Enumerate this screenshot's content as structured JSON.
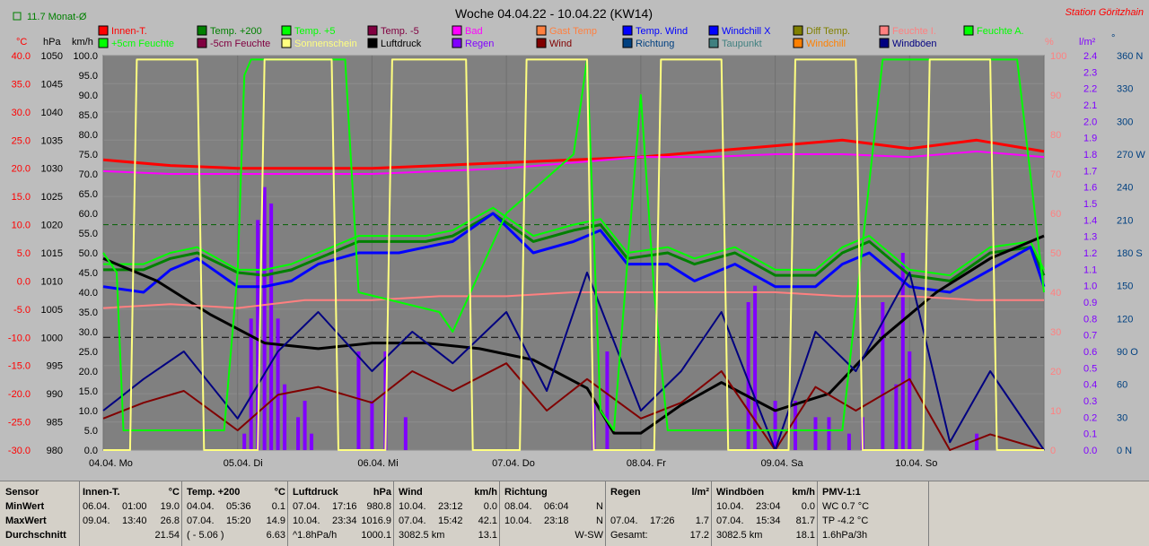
{
  "header": {
    "title": "Woche 04.04.22 - 10.04.22 (KW14)",
    "station": "Station Göritzhain",
    "month_avg": "11.7 Monat-Ø"
  },
  "axes_units": {
    "celsius": "°C",
    "hpa": "hPa",
    "kmh": "km/h",
    "percent": "%",
    "rain": "l/m²",
    "dir": "°"
  },
  "axes": {
    "celsius": [
      "40.0",
      "35.0",
      "30.0",
      "25.0",
      "20.0",
      "15.0",
      "10.0",
      "5.0",
      "0.0",
      "-5.0",
      "-10.0",
      "-15.0",
      "-20.0",
      "-25.0",
      "-30.0"
    ],
    "hpa": [
      "1050",
      "1045",
      "1040",
      "1035",
      "1030",
      "1025",
      "1020",
      "1015",
      "1010",
      "1005",
      "1000",
      "995",
      "990",
      "985",
      "980"
    ],
    "kmh": [
      "100.0",
      "95.0",
      "90.0",
      "85.0",
      "80.0",
      "75.0",
      "70.0",
      "65.0",
      "60.0",
      "55.0",
      "50.0",
      "45.0",
      "40.0",
      "35.0",
      "30.0",
      "25.0",
      "20.0",
      "15.0",
      "10.0",
      "5.0",
      "0.0"
    ],
    "percent": [
      "100",
      "90",
      "80",
      "70",
      "60",
      "50",
      "40",
      "30",
      "20",
      "10",
      "0"
    ],
    "rain": [
      "2.4",
      "2.3",
      "2.2",
      "2.1",
      "2.0",
      "1.9",
      "1.8",
      "1.7",
      "1.6",
      "1.5",
      "1.4",
      "1.3",
      "1.2",
      "1.1",
      "1.0",
      "0.9",
      "0.8",
      "0.7",
      "0.6",
      "0.5",
      "0.4",
      "0.3",
      "0.2",
      "0.1",
      "0.0"
    ],
    "dir": [
      "360 N",
      "330",
      "300",
      "270 W",
      "240",
      "210",
      "180 S",
      "150",
      "120",
      "90 O",
      "60",
      "30",
      "0 N"
    ],
    "days": [
      "04.04. Mo",
      "05.04. Di",
      "06.04. Mi",
      "07.04. Do",
      "08.04. Fr",
      "09.04. Sa",
      "10.04. So"
    ]
  },
  "legend": [
    {
      "label": "Innen-T.",
      "color": "#ff0000"
    },
    {
      "label": "Temp. +200",
      "color": "#008000"
    },
    {
      "label": "Temp. +5",
      "color": "#00ff00"
    },
    {
      "label": "Temp. -5",
      "color": "#800040"
    },
    {
      "label": "Bad",
      "color": "#ff00ff"
    },
    {
      "label": "Gast Temp",
      "color": "#ff8040"
    },
    {
      "label": "Temp. Wind",
      "color": "#0000ff"
    },
    {
      "label": "Windchill X",
      "color": "#0000ff"
    },
    {
      "label": "Diff Temp.",
      "color": "#808000"
    },
    {
      "label": "Feuchte I.",
      "color": "#ff8080"
    },
    {
      "label": "Feuchte A.",
      "color": "#00ff00"
    },
    {
      "label": "+5cm Feuchte",
      "color": "#00ff00"
    },
    {
      "label": "-5cm Feuchte",
      "color": "#800040"
    },
    {
      "label": "Sonnenschein",
      "color": "#ffff80"
    },
    {
      "label": "Luftdruck",
      "color": "#000000"
    },
    {
      "label": "Regen",
      "color": "#8000ff"
    },
    {
      "label": "Wind",
      "color": "#800000"
    },
    {
      "label": "Richtung",
      "color": "#004080"
    },
    {
      "label": "Taupunkt",
      "color": "#408080"
    },
    {
      "label": "Windchill",
      "color": "#ff8000"
    },
    {
      "label": "Windböen",
      "color": "#000080"
    }
  ],
  "chart_data": {
    "type": "line",
    "title": "Woche 04.04.22 - 10.04.22 (KW14)",
    "x_unit": "day of week (0=04.04 00:00 .. 7=11.04 00:00)",
    "series": [
      {
        "name": "Innen-T.",
        "axis": "celsius",
        "color": "#ff0000",
        "width": 3,
        "x": [
          0,
          0.5,
          1,
          1.5,
          2,
          2.5,
          3,
          3.5,
          4,
          4.5,
          5,
          5.5,
          6,
          6.5,
          7
        ],
        "y": [
          21.5,
          20.5,
          20.0,
          20.0,
          20.0,
          20.5,
          21.0,
          21.5,
          22.0,
          23.0,
          24.0,
          25.0,
          23.5,
          25.0,
          23.0
        ]
      },
      {
        "name": "Temp. +5",
        "axis": "celsius",
        "color": "#00ff00",
        "width": 2,
        "x": [
          0,
          0.3,
          0.5,
          0.7,
          1,
          1.2,
          1.4,
          1.6,
          1.9,
          2.2,
          2.4,
          2.6,
          2.9,
          3.2,
          3.5,
          3.7,
          3.9,
          4.2,
          4.4,
          4.7,
          5.0,
          5.3,
          5.5,
          5.7,
          6.0,
          6.3,
          6.6,
          6.9,
          7
        ],
        "y": [
          3,
          3,
          5,
          6,
          2,
          2,
          3,
          5,
          8,
          8,
          8,
          9,
          13,
          8,
          10,
          11,
          5,
          6,
          4,
          6,
          2,
          2,
          6,
          8,
          2,
          1,
          6,
          7,
          2
        ]
      },
      {
        "name": "Temp. +200",
        "axis": "celsius",
        "color": "#008000",
        "width": 3,
        "x": [
          0,
          0.3,
          0.5,
          0.7,
          1,
          1.2,
          1.4,
          1.6,
          1.9,
          2.2,
          2.4,
          2.6,
          2.9,
          3.2,
          3.5,
          3.7,
          3.9,
          4.2,
          4.4,
          4.7,
          5.0,
          5.3,
          5.5,
          5.7,
          6.0,
          6.3,
          6.6,
          6.9,
          7
        ],
        "y": [
          2,
          2,
          4,
          5,
          1.5,
          1,
          2,
          4,
          7,
          7,
          7,
          8,
          12,
          7,
          9,
          10,
          4,
          5,
          3,
          5,
          1,
          1,
          5,
          7,
          1,
          0,
          5,
          6,
          1
        ]
      },
      {
        "name": "Temp. Wind",
        "axis": "celsius",
        "color": "#0000ff",
        "width": 3,
        "x": [
          0,
          0.3,
          0.5,
          0.7,
          1,
          1.2,
          1.4,
          1.6,
          1.9,
          2.2,
          2.4,
          2.6,
          2.9,
          3.2,
          3.5,
          3.7,
          3.9,
          4.2,
          4.4,
          4.7,
          5.0,
          5.3,
          5.5,
          5.7,
          6.0,
          6.3,
          6.6,
          6.9,
          7
        ],
        "y": [
          -1,
          -2,
          2,
          4,
          -1,
          -1,
          0,
          3,
          5,
          5,
          6,
          7,
          12,
          5,
          7,
          9,
          3,
          3,
          0,
          3,
          -1,
          -1,
          3,
          5,
          -1,
          -2,
          2,
          6,
          -1
        ]
      },
      {
        "name": "Luftdruck",
        "axis": "hpa",
        "color": "#000000",
        "width": 3,
        "x": [
          0,
          0.4,
          0.8,
          1.2,
          1.6,
          2.0,
          2.4,
          2.8,
          3.2,
          3.6,
          3.8,
          4.0,
          4.3,
          4.6,
          5.0,
          5.4,
          5.8,
          6.2,
          6.6,
          7
        ],
        "y": [
          1014,
          1010,
          1004,
          999,
          998,
          999,
          999,
          998,
          996,
          991,
          983,
          983,
          988,
          992,
          987,
          990,
          1000,
          1008,
          1014,
          1018
        ]
      },
      {
        "name": "Feuchte I.",
        "axis": "percent",
        "color": "#ff8080",
        "width": 2,
        "x": [
          0,
          0.5,
          1,
          1.5,
          2,
          2.5,
          3,
          3.5,
          4,
          4.5,
          5,
          5.5,
          6,
          6.5,
          7
        ],
        "y": [
          36,
          37,
          36,
          38,
          38,
          39,
          39,
          40,
          40,
          40,
          40,
          39,
          39,
          38,
          38
        ]
      },
      {
        "name": "Bad",
        "axis": "celsius",
        "color": "#ff00ff",
        "width": 2,
        "x": [
          0,
          0.5,
          1,
          1.5,
          2,
          2.5,
          3,
          3.5,
          4,
          4.5,
          5,
          5.5,
          6,
          6.5,
          7
        ],
        "y": [
          19.5,
          19,
          19,
          19,
          19,
          19.5,
          20,
          21,
          22,
          22,
          22.5,
          22.5,
          22,
          23,
          22
        ]
      },
      {
        "name": "Wind",
        "axis": "kmh",
        "color": "#800000",
        "width": 2,
        "x": [
          0,
          0.3,
          0.6,
          1,
          1.3,
          1.6,
          2,
          2.3,
          2.6,
          3,
          3.3,
          3.6,
          4,
          4.3,
          4.6,
          5,
          5.3,
          5.6,
          6,
          6.3,
          6.6,
          7
        ],
        "y": [
          8,
          12,
          15,
          5,
          14,
          16,
          12,
          20,
          15,
          22,
          10,
          18,
          8,
          12,
          20,
          0,
          16,
          10,
          18,
          0,
          4,
          0
        ]
      },
      {
        "name": "Windböen",
        "axis": "kmh",
        "color": "#000080",
        "width": 2,
        "x": [
          0,
          0.3,
          0.6,
          1,
          1.3,
          1.6,
          2,
          2.3,
          2.6,
          3,
          3.3,
          3.6,
          4,
          4.3,
          4.6,
          5,
          5.3,
          5.6,
          6,
          6.3,
          6.6,
          7
        ],
        "y": [
          10,
          18,
          25,
          8,
          25,
          35,
          20,
          30,
          22,
          35,
          15,
          45,
          10,
          20,
          35,
          0,
          30,
          20,
          45,
          2,
          20,
          0
        ]
      },
      {
        "name": "Feuchte A.",
        "axis": "percent",
        "color": "#00ff00",
        "width": 2,
        "x": [
          0,
          0.1,
          0.15,
          0.3,
          0.8,
          0.9,
          1.0,
          1.05,
          1.1,
          1.7,
          1.8,
          1.9,
          2.5,
          2.6,
          3.0,
          3.5,
          3.6,
          3.7,
          3.8,
          4.0,
          4.1,
          4.2,
          4.5,
          5.0,
          5.5,
          5.8,
          6.0,
          6.5,
          6.8,
          7
        ],
        "y": [
          50,
          45,
          5,
          5,
          5,
          5,
          45,
          95,
          99,
          99,
          99,
          40,
          35,
          30,
          60,
          75,
          99,
          10,
          5,
          90,
          40,
          5,
          5,
          5,
          5,
          99,
          99,
          99,
          99,
          40
        ]
      },
      {
        "name": "Sonnenschein",
        "axis": "percent",
        "color": "#ffff80",
        "width": 2,
        "x": [
          0,
          0.2,
          0.25,
          0.7,
          0.75,
          1.15,
          1.2,
          1.7,
          1.75,
          2.1,
          2.15,
          2.7,
          2.75,
          3.1,
          3.15,
          3.6,
          3.65,
          4.1,
          4.15,
          4.6,
          4.65,
          5.1,
          5.15,
          5.6,
          5.65,
          6.1,
          6.15,
          6.6,
          6.65,
          7
        ],
        "y": [
          0,
          0,
          99,
          99,
          0,
          0,
          99,
          99,
          0,
          0,
          99,
          99,
          0,
          0,
          99,
          99,
          0,
          0,
          99,
          99,
          0,
          0,
          99,
          99,
          0,
          0,
          99,
          99,
          0,
          0
        ]
      }
    ],
    "rain_bars": {
      "axis": "rain",
      "color": "#8000ff",
      "x": [
        1.05,
        1.1,
        1.15,
        1.2,
        1.25,
        1.3,
        1.35,
        1.45,
        1.5,
        1.55,
        1.9,
        2.0,
        2.1,
        2.25,
        3.65,
        3.75,
        4.8,
        4.85,
        5.0,
        5.15,
        5.3,
        5.4,
        5.55,
        5.65,
        5.8,
        5.9,
        5.95,
        6.0,
        6.5
      ],
      "y": [
        0.1,
        0.8,
        1.4,
        1.6,
        1.5,
        0.8,
        0.4,
        0.2,
        0.3,
        0.1,
        0.6,
        0.3,
        0.6,
        0.2,
        0.3,
        0.6,
        0.9,
        1.0,
        0.3,
        0.3,
        0.2,
        0.2,
        0.1,
        0.2,
        0.9,
        0.4,
        1.2,
        0.6,
        0.1
      ]
    },
    "ylim_celsius": [
      -30,
      40
    ],
    "ylim_hpa": [
      980,
      1050
    ],
    "ylim_kmh": [
      0,
      100
    ],
    "ylim_percent": [
      0,
      100
    ],
    "ylim_rain": [
      0,
      2.4
    ],
    "ylim_dir": [
      0,
      360
    ]
  },
  "stats": {
    "sensor": {
      "title": "Sensor",
      "rows": [
        "MinWert",
        "MaxWert",
        "Durchschnitt"
      ]
    },
    "blocks": [
      {
        "title": "Innen-T.",
        "unit": "°C",
        "rows": [
          [
            "06.04.",
            "01:00",
            "19.0"
          ],
          [
            "09.04.",
            "13:40",
            "26.8"
          ],
          [
            "",
            "",
            "21.54"
          ]
        ]
      },
      {
        "title": "Temp. +200",
        "unit": "°C",
        "rows": [
          [
            "04.04.",
            "05:36",
            "0.1"
          ],
          [
            "07.04.",
            "15:20",
            "14.9"
          ],
          [
            "( - 5.06 )",
            "",
            "6.63"
          ]
        ]
      },
      {
        "title": "Luftdruck",
        "unit": "hPa",
        "rows": [
          [
            "07.04.",
            "17:16",
            "980.8"
          ],
          [
            "10.04.",
            "23:34",
            "1016.9"
          ],
          [
            "^1.8hPa/h",
            "",
            "1000.1"
          ]
        ]
      },
      {
        "title": "Wind",
        "unit": "km/h",
        "rows": [
          [
            "10.04.",
            "23:12",
            "0.0"
          ],
          [
            "07.04.",
            "15:42",
            "42.1"
          ],
          [
            "3082.5 km",
            "",
            "13.1"
          ]
        ]
      },
      {
        "title": "Richtung",
        "unit": "",
        "rows": [
          [
            "08.04.",
            "06:04",
            "N"
          ],
          [
            "10.04.",
            "23:18",
            "N"
          ],
          [
            "",
            "",
            "W-SW"
          ]
        ]
      },
      {
        "title": "Regen",
        "unit": "l/m²",
        "rows": [
          [
            "",
            "",
            ""
          ],
          [
            "07.04.",
            "17:26",
            "1.7"
          ],
          [
            "Gesamt:",
            "",
            "17.2"
          ]
        ]
      },
      {
        "title": "Windböen",
        "unit": "km/h",
        "rows": [
          [
            "10.04.",
            "23:04",
            "0.0"
          ],
          [
            "07.04.",
            "15:34",
            "81.7"
          ],
          [
            "3082.5 km",
            "",
            "18.1"
          ]
        ]
      },
      {
        "title": "PMV-1:1",
        "unit": "",
        "rows": [
          [
            "WC 0.7 °C",
            "",
            ""
          ],
          [
            "TP -4.2 °C",
            "",
            ""
          ],
          [
            "1.6hPa/3h",
            "",
            ""
          ]
        ]
      }
    ]
  }
}
